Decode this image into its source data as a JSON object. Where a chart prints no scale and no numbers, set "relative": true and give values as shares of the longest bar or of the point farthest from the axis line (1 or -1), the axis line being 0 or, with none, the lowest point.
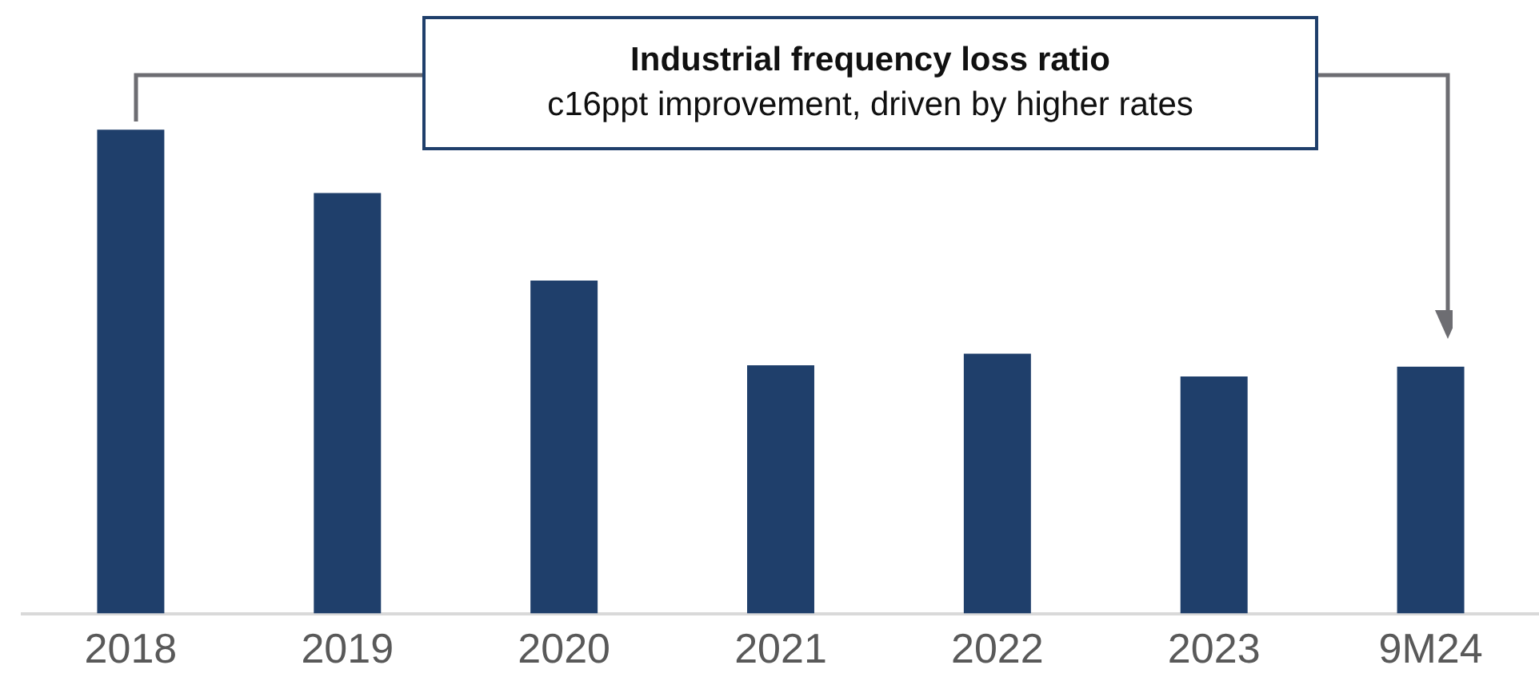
{
  "chart_data": {
    "type": "bar",
    "title": "Industrial frequency loss ratio",
    "subtitle": "c16ppt improvement, driven by higher rates",
    "categories": [
      "2018",
      "2019",
      "2020",
      "2021",
      "2022",
      "2023",
      "9M24"
    ],
    "values": [
      1,
      0.869,
      0.688,
      0.513,
      0.537,
      0.49,
      0.51
    ],
    "color": "#1f3f6b",
    "relative": true,
    "grid": false,
    "legend": false
  }
}
